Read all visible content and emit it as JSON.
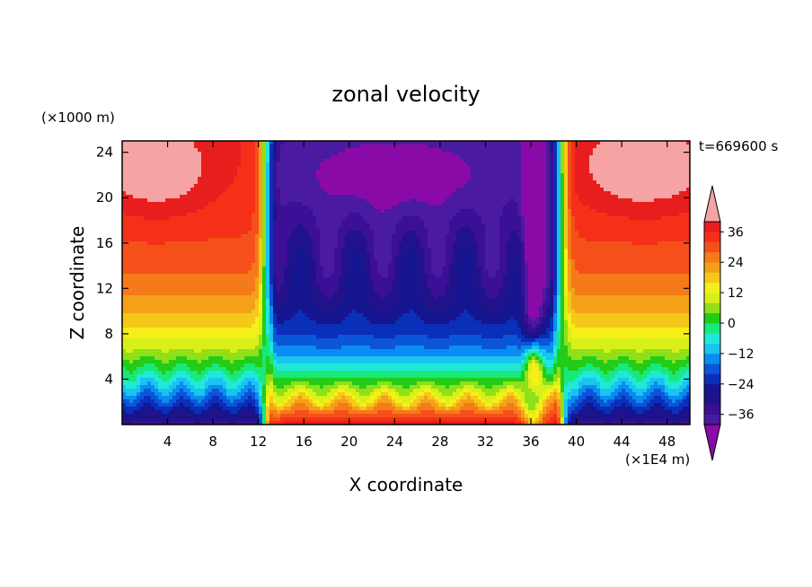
{
  "chart_data": {
    "type": "heatmap",
    "title": "zonal velocity",
    "xlabel": "X coordinate",
    "ylabel": "Z coordinate",
    "x_unit": "(×1E4 m)",
    "y_unit": "(×1000 m)",
    "time_label": "t=669600 s",
    "xlim": [
      0,
      50
    ],
    "ylim": [
      0,
      25
    ],
    "x_ticks": [
      4,
      8,
      12,
      16,
      20,
      24,
      28,
      32,
      36,
      40,
      44,
      48
    ],
    "y_ticks": [
      4,
      8,
      12,
      16,
      20,
      24
    ],
    "colorbar": {
      "levels": [
        -40,
        -36,
        -32,
        -28,
        -24,
        -20,
        -16,
        -12,
        -8,
        -4,
        0,
        4,
        8,
        12,
        16,
        20,
        24,
        28,
        32,
        36,
        40
      ],
      "labels": [
        36,
        24,
        12,
        0,
        -12,
        -24,
        -36
      ],
      "colors": [
        "#4a1aa0",
        "#3b0f96",
        "#22128a",
        "#15168f",
        "#0a2fb8",
        "#0a55d8",
        "#0a8cf0",
        "#19c4f0",
        "#21e8d8",
        "#19e87a",
        "#22cc19",
        "#8fe019",
        "#d8f019",
        "#f5f019",
        "#f5c819",
        "#f5a019",
        "#f57a19",
        "#f55019",
        "#f53019",
        "#e81e1e"
      ],
      "under_color": "#8a0aa8",
      "over_color": "#f5a3a3",
      "label_values_shown": [
        "36",
        "24",
        "12",
        "0",
        "−12",
        "−24",
        "−36"
      ]
    }
  }
}
